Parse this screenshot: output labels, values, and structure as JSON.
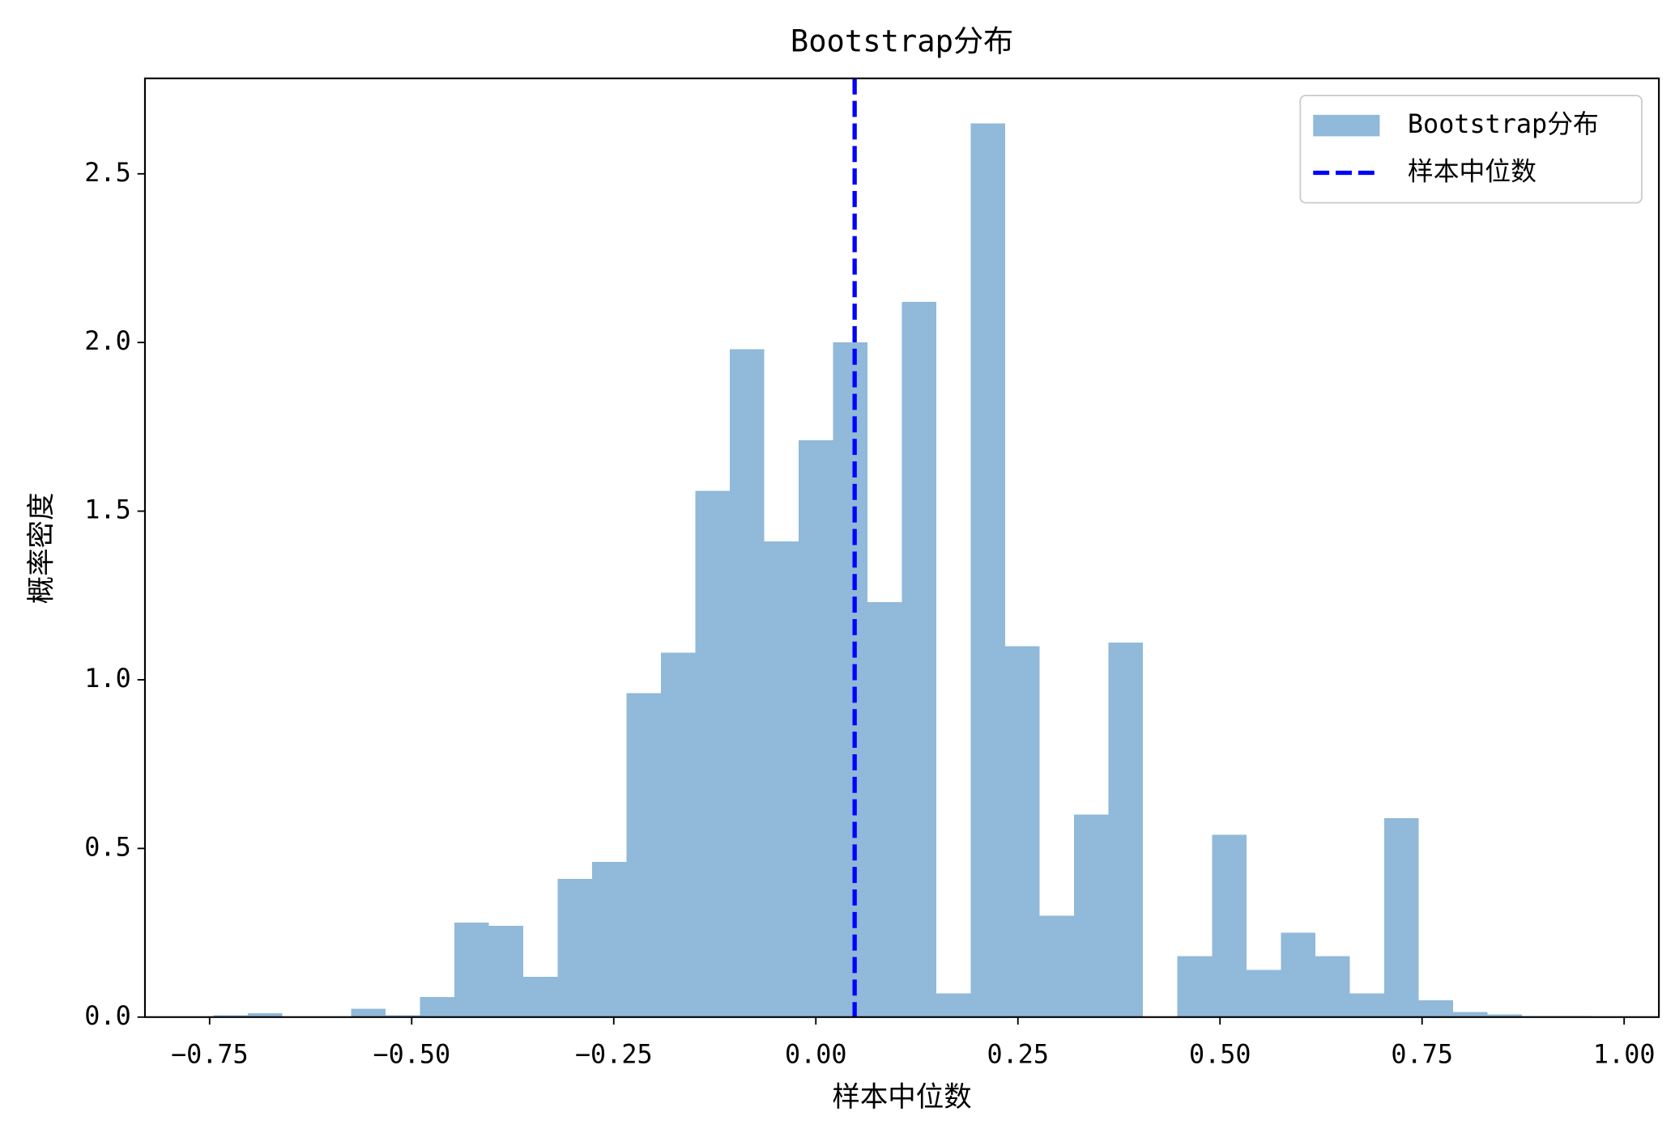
{
  "chart_data": {
    "type": "histogram",
    "title": "Bootstrap分布",
    "x_label": "样本中位数",
    "y_label": "概率密度",
    "bins": [
      -0.7454,
      -0.7028,
      -0.6602,
      -0.6176,
      -0.575,
      -0.5324,
      -0.4898,
      -0.4472,
      -0.4046,
      -0.362,
      -0.3194,
      -0.2768,
      -0.2342,
      -0.1916,
      -0.149,
      -0.1064,
      -0.0638,
      -0.0212,
      0.0214,
      0.064,
      0.1066,
      0.1492,
      0.1918,
      0.2344,
      0.277,
      0.3196,
      0.3622,
      0.4048,
      0.4474,
      0.49,
      0.5326,
      0.5752,
      0.6178,
      0.6604,
      0.703,
      0.7456,
      0.7882,
      0.8308,
      0.8734,
      0.916,
      0.9586
    ],
    "series": [
      {
        "name": "Bootstrap分布",
        "color": "#90b9da",
        "values": [
          0.005,
          0.012,
          0,
          0,
          0.025,
          0.005,
          0.06,
          0.28,
          0.27,
          0.12,
          0.41,
          0.46,
          0.96,
          1.08,
          1.56,
          1.98,
          1.41,
          1.71,
          2.0,
          1.23,
          2.12,
          0.07,
          2.65,
          1.1,
          0.3,
          0.6,
          1.11,
          0,
          0.18,
          0.54,
          0.14,
          0.25,
          0.18,
          0.07,
          0.59,
          0.05,
          0.015,
          0.008,
          0.003,
          0.003
        ]
      }
    ],
    "vline": {
      "name": "样本中位数",
      "value": 0.048,
      "color": "#0000ff",
      "style": "dashed"
    },
    "xlim": [
      -0.83,
      1.043
    ],
    "ylim": [
      0,
      2.783
    ],
    "xticks": [
      {
        "value": -0.75,
        "label": "−0.75"
      },
      {
        "value": -0.5,
        "label": "−0.50"
      },
      {
        "value": -0.25,
        "label": "−0.25"
      },
      {
        "value": 0,
        "label": "0.00"
      },
      {
        "value": 0.25,
        "label": "0.25"
      },
      {
        "value": 0.5,
        "label": "0.50"
      },
      {
        "value": 0.75,
        "label": "0.75"
      },
      {
        "value": 1,
        "label": "1.00"
      }
    ],
    "yticks": [
      {
        "value": 0,
        "label": "0.0"
      },
      {
        "value": 0.5,
        "label": "0.5"
      },
      {
        "value": 1,
        "label": "1.0"
      },
      {
        "value": 1.5,
        "label": "1.5"
      },
      {
        "value": 2,
        "label": "2.0"
      },
      {
        "value": 2.5,
        "label": "2.5"
      }
    ],
    "legend": "upper right",
    "grid": false
  }
}
